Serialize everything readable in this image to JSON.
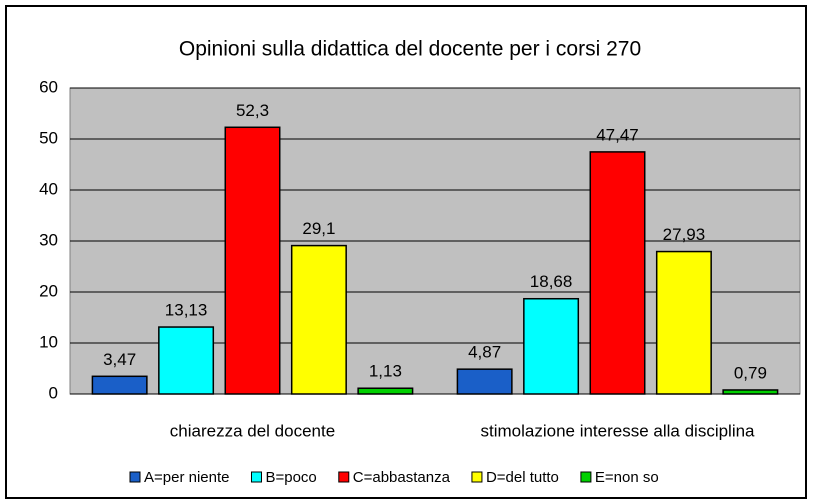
{
  "chart_data": {
    "type": "bar",
    "title": "Opinioni sulla didattica del docente per i corsi 270",
    "categories": [
      "chiarezza del docente",
      "stimolazione interesse alla disciplina"
    ],
    "series": [
      {
        "name": "A=per niente",
        "color": "#1a5fc8",
        "values": [
          3.47,
          4.87
        ],
        "value_labels": [
          "3,47",
          "4,87"
        ]
      },
      {
        "name": "B=poco",
        "color": "#00ffff",
        "values": [
          13.13,
          18.68
        ],
        "value_labels": [
          "13,13",
          "18,68"
        ]
      },
      {
        "name": "C=abbastanza",
        "color": "#ff0000",
        "values": [
          52.3,
          47.47
        ],
        "value_labels": [
          "52,3",
          "47,47"
        ]
      },
      {
        "name": "D=del tutto",
        "color": "#ffff00",
        "values": [
          29.1,
          27.93
        ],
        "value_labels": [
          "29,1",
          "27,93"
        ]
      },
      {
        "name": "E=non so",
        "color": "#00d000",
        "values": [
          1.13,
          0.79
        ],
        "value_labels": [
          "1,13",
          "0,79"
        ]
      }
    ],
    "ylim": [
      0,
      60
    ],
    "yticks": [
      0,
      10,
      20,
      30,
      40,
      50,
      60
    ],
    "grid": true,
    "legend": "bottom"
  }
}
